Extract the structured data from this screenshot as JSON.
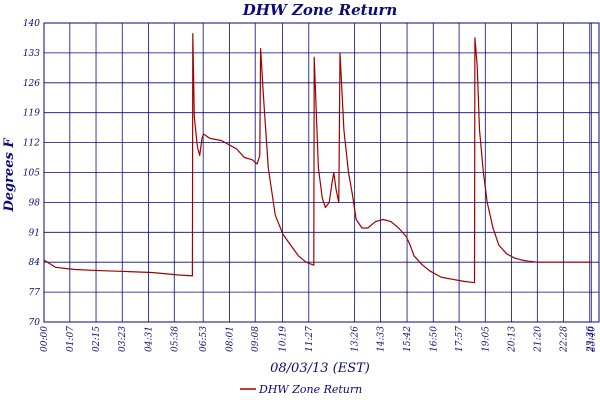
{
  "chart_data": {
    "type": "line",
    "title": "DHW Zone Return",
    "xlabel": "08/03/13 (EST)",
    "ylabel": "Degrees F",
    "ylim": [
      70,
      140
    ],
    "yticks": [
      70,
      77,
      84,
      91,
      98,
      105,
      112,
      119,
      126,
      133,
      140
    ],
    "xlim": [
      0,
      1440
    ],
    "xticks": [
      {
        "label": "00:00",
        "minutes": 0
      },
      {
        "label": "01:07",
        "minutes": 67
      },
      {
        "label": "02:15",
        "minutes": 135
      },
      {
        "label": "03:23",
        "minutes": 203
      },
      {
        "label": "04:31",
        "minutes": 271
      },
      {
        "label": "05:38",
        "minutes": 338
      },
      {
        "label": "06:53",
        "minutes": 413
      },
      {
        "label": "08:01",
        "minutes": 481
      },
      {
        "label": "09:08",
        "minutes": 548
      },
      {
        "label": "10:19",
        "minutes": 619
      },
      {
        "label": "11:27",
        "minutes": 687
      },
      {
        "label": "13:26",
        "minutes": 806
      },
      {
        "label": "14:33",
        "minutes": 873
      },
      {
        "label": "15:42",
        "minutes": 942
      },
      {
        "label": "16:50",
        "minutes": 1010
      },
      {
        "label": "17:57",
        "minutes": 1077
      },
      {
        "label": "19:05",
        "minutes": 1145
      },
      {
        "label": "20:13",
        "minutes": 1213
      },
      {
        "label": "21:20",
        "minutes": 1280
      },
      {
        "label": "22:28",
        "minutes": 1348
      },
      {
        "label": "23:36",
        "minutes": 1416
      },
      {
        "label": "23:40",
        "minutes": 1420
      }
    ],
    "grid": true,
    "legend_position": "bottom",
    "series": [
      {
        "name": "DHW Zone Return",
        "color": "#a00000",
        "points": [
          [
            0,
            84.5
          ],
          [
            30,
            82.8
          ],
          [
            80,
            82.3
          ],
          [
            150,
            82.0
          ],
          [
            220,
            81.8
          ],
          [
            280,
            81.6
          ],
          [
            350,
            81.0
          ],
          [
            385,
            80.8
          ],
          [
            386,
            137.5
          ],
          [
            390,
            118
          ],
          [
            398,
            111
          ],
          [
            404,
            109
          ],
          [
            410,
            113
          ],
          [
            414,
            114
          ],
          [
            430,
            113
          ],
          [
            460,
            112.5
          ],
          [
            480,
            111.5
          ],
          [
            500,
            110.5
          ],
          [
            510,
            109.5
          ],
          [
            520,
            108.5
          ],
          [
            540,
            108
          ],
          [
            553,
            107
          ],
          [
            560,
            109
          ],
          [
            562,
            134
          ],
          [
            570,
            122
          ],
          [
            582,
            106
          ],
          [
            600,
            95
          ],
          [
            620,
            90.5
          ],
          [
            640,
            88
          ],
          [
            660,
            85.5
          ],
          [
            680,
            84
          ],
          [
            700,
            83.3
          ],
          [
            701,
            132
          ],
          [
            712,
            106
          ],
          [
            722,
            99
          ],
          [
            730,
            96.8
          ],
          [
            740,
            98
          ],
          [
            748,
            103
          ],
          [
            752,
            105
          ],
          [
            758,
            101
          ],
          [
            765,
            98
          ],
          [
            768,
            133
          ],
          [
            778,
            115
          ],
          [
            790,
            105
          ],
          [
            800,
            100
          ],
          [
            810,
            94
          ],
          [
            825,
            92
          ],
          [
            840,
            92
          ],
          [
            860,
            93.5
          ],
          [
            880,
            94
          ],
          [
            900,
            93.5
          ],
          [
            920,
            92
          ],
          [
            940,
            90
          ],
          [
            950,
            88
          ],
          [
            960,
            85.5
          ],
          [
            980,
            83.5
          ],
          [
            1000,
            82
          ],
          [
            1030,
            80.5
          ],
          [
            1060,
            80
          ],
          [
            1090,
            79.5
          ],
          [
            1117,
            79.2
          ],
          [
            1118,
            136.5
          ],
          [
            1124,
            130
          ],
          [
            1130,
            115
          ],
          [
            1140,
            105
          ],
          [
            1150,
            98
          ],
          [
            1165,
            92
          ],
          [
            1180,
            88
          ],
          [
            1200,
            86
          ],
          [
            1220,
            85
          ],
          [
            1240,
            84.5
          ],
          [
            1260,
            84.2
          ],
          [
            1280,
            84
          ],
          [
            1420,
            84
          ]
        ]
      }
    ]
  }
}
